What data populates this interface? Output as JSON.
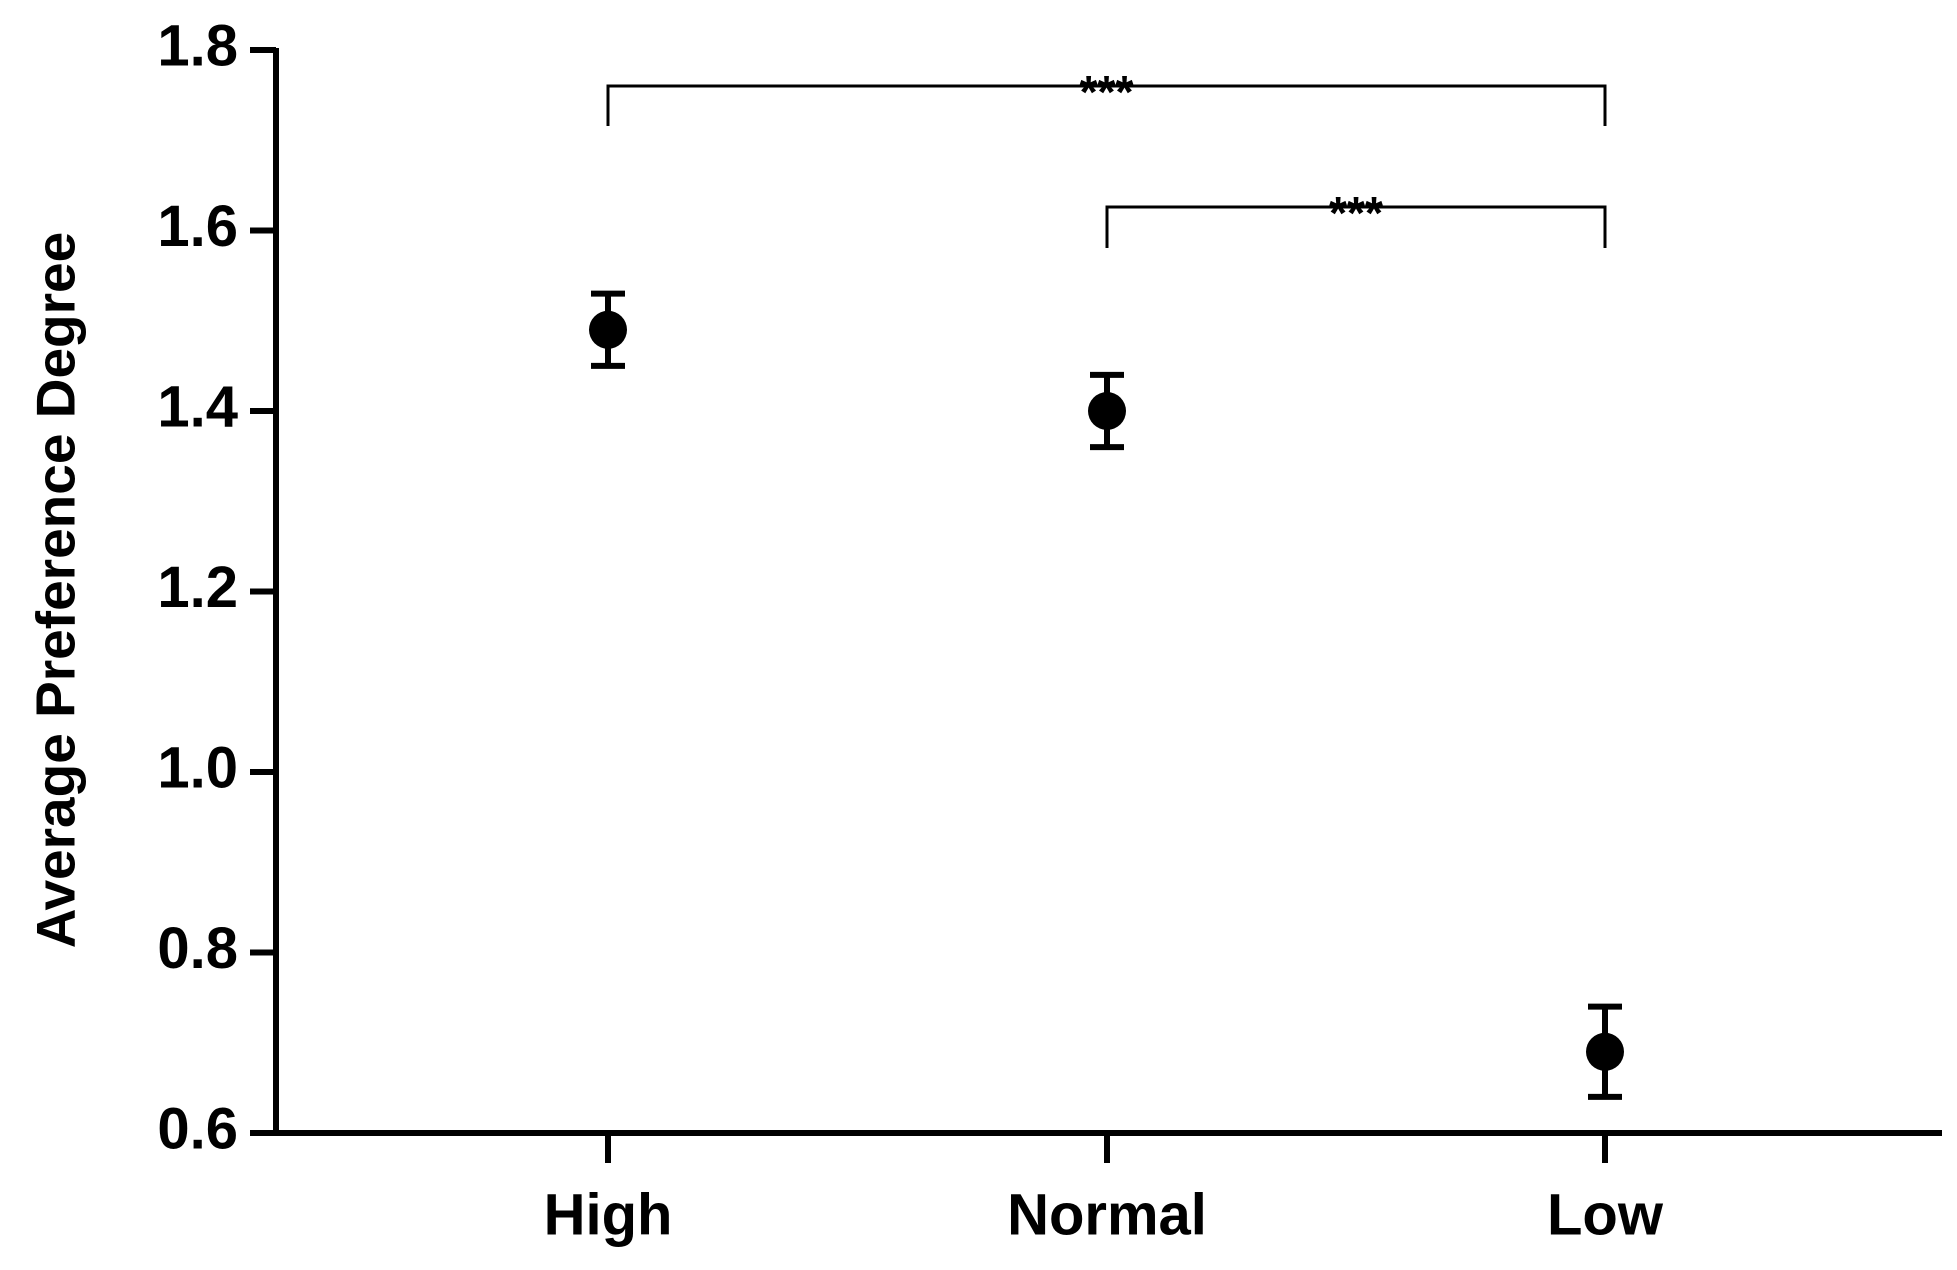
{
  "chart_data": {
    "type": "dot",
    "y_label": "Average Preference Degree",
    "categories": [
      "High",
      "Normal",
      "Low"
    ],
    "values": [
      1.49,
      1.4,
      0.69
    ],
    "errors": [
      0.04,
      0.04,
      0.05
    ],
    "color": "#000000",
    "ylim": [
      0.6,
      1.8
    ],
    "yticks": [
      0.6,
      0.8,
      {
        "value": 1,
        "label": "1.0"
      },
      1.2,
      1.4,
      1.6,
      1.8
    ],
    "annotations": [
      {
        "text": "***"
      },
      {
        "text": "***"
      }
    ]
  }
}
